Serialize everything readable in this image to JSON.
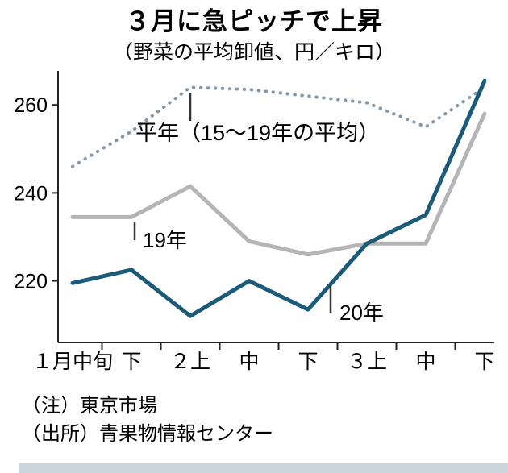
{
  "title": "３月に急ピッチで上昇",
  "subtitle": "（野菜の平均卸値、円／キロ）",
  "notes": [
    "（注）東京市場",
    "（出所）青果物情報センター"
  ],
  "chart_data": {
    "type": "line",
    "title": "３月に急ピッチで上昇",
    "unit_note": "野菜の平均卸値、円／キロ",
    "categories": [
      "１月中旬",
      "下",
      "２上",
      "中",
      "下",
      "３上",
      "中",
      "下"
    ],
    "series": [
      {
        "id": "heinen",
        "name": "平年（15～19年の平均）",
        "style": "dashed",
        "color": "#8498ac",
        "values": [
          246,
          254,
          264,
          263.5,
          262,
          260.5,
          255,
          264
        ]
      },
      {
        "id": "y2019",
        "name": "19年",
        "style": "solid",
        "color": "#b5b4b7",
        "values": [
          234.5,
          234.5,
          241.5,
          229,
          226,
          228.5,
          228.5,
          258
        ]
      },
      {
        "id": "y2020",
        "name": "20年",
        "style": "solid",
        "color": "#1b5a78",
        "values": [
          219.5,
          222.5,
          212,
          220,
          213.5,
          228.5,
          235,
          265.5
        ]
      }
    ],
    "yticks": [
      220,
      240,
      260
    ],
    "ylim": [
      206,
      267
    ],
    "xlabel": "",
    "ylabel": "",
    "grid": false,
    "legend_position": "inline-annotations"
  }
}
